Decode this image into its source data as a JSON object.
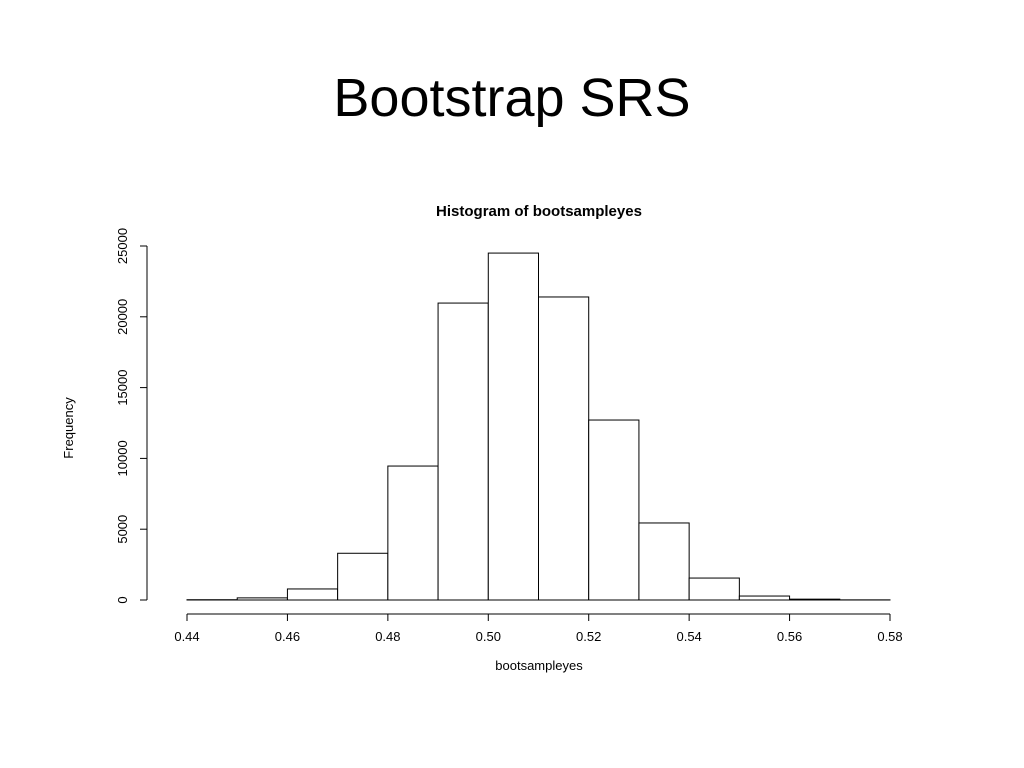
{
  "slide_title": "Bootstrap SRS",
  "chart_data": {
    "type": "histogram",
    "title": "Histogram of bootsampleyes",
    "x_label": "bootsampleyes",
    "y_label": "Frequency",
    "bins": [
      0.44,
      0.45,
      0.46,
      0.47,
      0.48,
      0.49,
      0.5,
      0.51,
      0.52,
      0.53,
      0.54,
      0.55,
      0.56,
      0.57,
      0.58
    ],
    "values": [
      20,
      150,
      780,
      3300,
      9460,
      20970,
      24500,
      21400,
      12710,
      5440,
      1550,
      280,
      60,
      10
    ],
    "color": "#ffffff",
    "xlim": [
      0.44,
      0.58
    ],
    "xticks": [
      0.44,
      0.46,
      0.48,
      {
        "value": 0.5,
        "label": "0.50"
      },
      0.52,
      0.54,
      0.56,
      0.58
    ],
    "ylim": [
      0,
      25000
    ],
    "yticks": [
      0,
      5000,
      10000,
      15000,
      20000,
      25000
    ]
  }
}
